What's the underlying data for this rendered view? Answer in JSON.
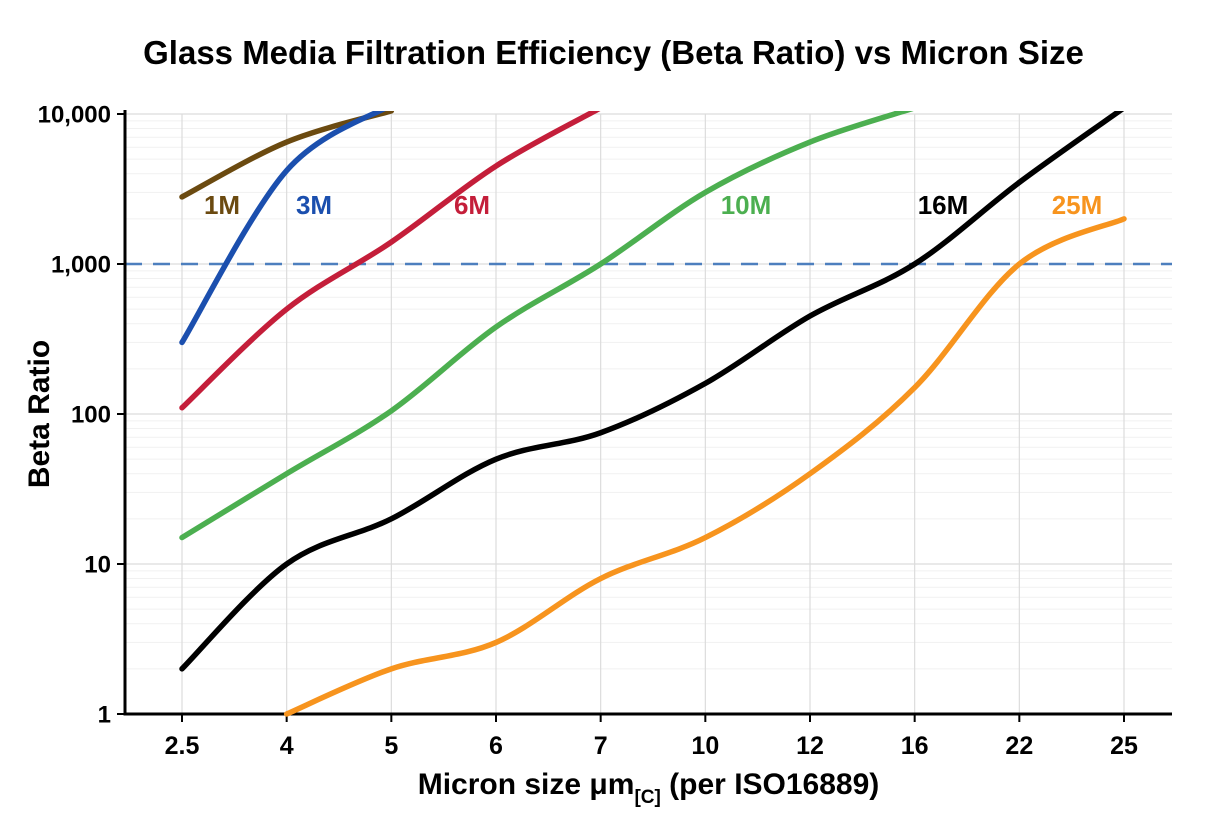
{
  "chart_data": {
    "type": "line",
    "title": "Glass Media Filtration Efficiency (Beta Ratio) vs Micron Size",
    "xlabel_main": "Micron size μm",
    "xlabel_sub": "[C]",
    "xlabel_rest": " (per ISO16889)",
    "ylabel": "Beta Ratio",
    "x_categories": [
      "2.5",
      "4",
      "5",
      "6",
      "7",
      "10",
      "12",
      "16",
      "22",
      "25"
    ],
    "x_axis_note": "categories equally spaced",
    "y_scale": "log",
    "ylim": [
      1,
      10000
    ],
    "y_ticks": [
      {
        "value": 1,
        "label": "1"
      },
      {
        "value": 10,
        "label": "10"
      },
      {
        "value": 100,
        "label": "100"
      },
      {
        "value": 1000,
        "label": "1,000"
      },
      {
        "value": 10000,
        "label": "10,000"
      }
    ],
    "grid": true,
    "legend_position": "inline-labels-near-curves",
    "reference_line": {
      "value": 1000,
      "color": "#4d7fbe",
      "style": "dashed"
    },
    "series": [
      {
        "name": "1M",
        "color": "#6b4a10",
        "values": [
          2800,
          6500,
          10500,
          null,
          null,
          null,
          null,
          null,
          null,
          null
        ],
        "label_pos": [
          222,
          214
        ]
      },
      {
        "name": "3M",
        "color": "#1b4fae",
        "values": [
          300,
          4200,
          11500,
          null,
          null,
          null,
          null,
          null,
          null,
          null
        ],
        "label_pos": [
          314,
          214
        ]
      },
      {
        "name": "6M",
        "color": "#c41e3a",
        "values": [
          110,
          500,
          1400,
          4500,
          11000,
          null,
          null,
          null,
          null,
          null
        ],
        "label_pos": [
          472,
          214
        ]
      },
      {
        "name": "10M",
        "color": "#4caf50",
        "values": [
          15,
          40,
          105,
          380,
          1000,
          3000,
          6500,
          11000,
          null,
          null
        ],
        "label_pos": [
          746,
          214
        ]
      },
      {
        "name": "16M",
        "color": "#000000",
        "values": [
          2,
          10,
          20,
          50,
          75,
          160,
          450,
          1000,
          3500,
          11000
        ],
        "label_pos": [
          943,
          214
        ]
      },
      {
        "name": "25M",
        "color": "#f7941e",
        "values": [
          null,
          1,
          2,
          3,
          8,
          15,
          40,
          150,
          1000,
          2000
        ],
        "label_pos": [
          1077,
          214
        ]
      }
    ]
  }
}
